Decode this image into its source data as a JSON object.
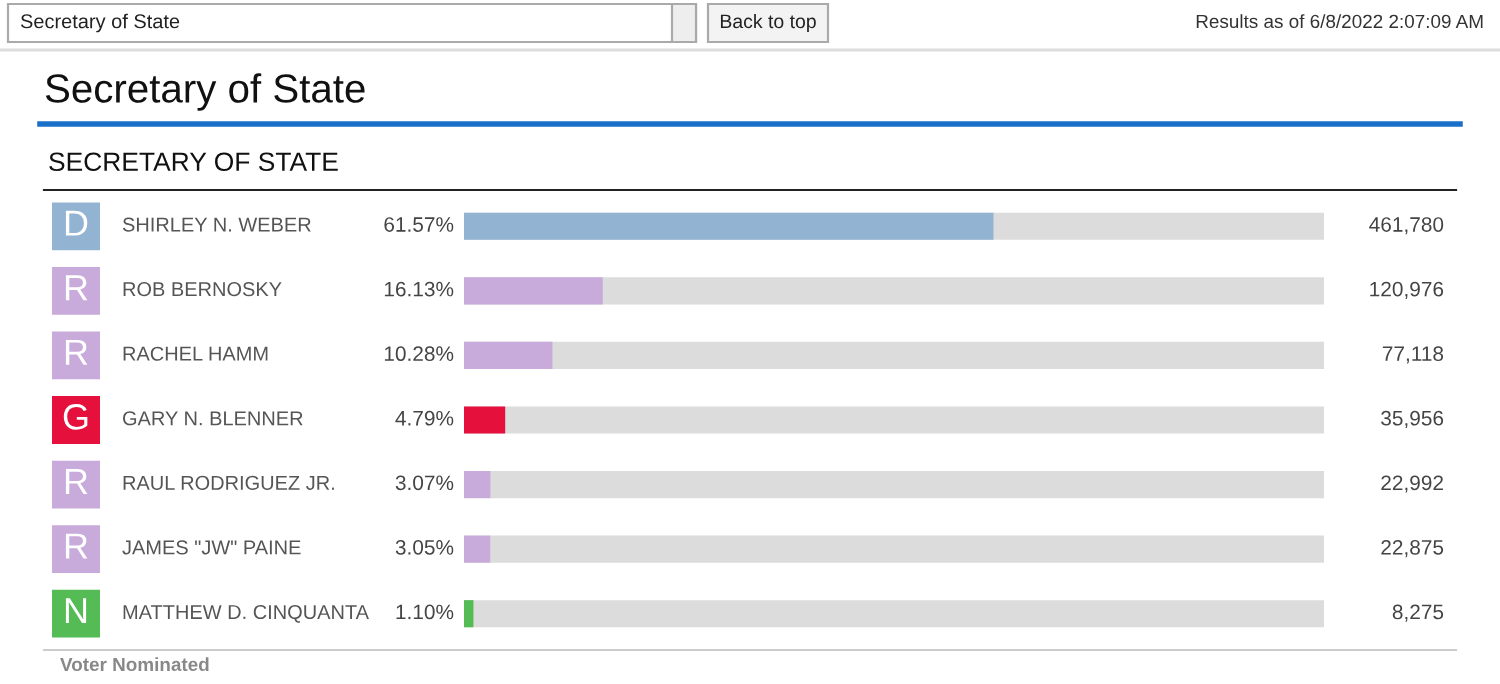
{
  "chart_data": {
    "type": "bar",
    "orientation": "horizontal",
    "title": "Secretary of State",
    "subtitle": "SECRETARY OF STATE",
    "categories": [
      "SHIRLEY N. WEBER",
      "ROB BERNOSKY",
      "RACHEL HAMM",
      "GARY N. BLENNER",
      "RAUL RODRIGUEZ JR.",
      "JAMES \"JW\" PAINE",
      "MATTHEW D. CINQUANTA"
    ],
    "values": [
      61.57,
      16.13,
      10.28,
      4.79,
      3.07,
      3.05,
      1.1
    ],
    "value_labels": [
      "61.57%",
      "16.13%",
      "10.28%",
      "4.79%",
      "3.07%",
      "3.05%",
      "1.10%"
    ],
    "colors": [
      "#93b3d2",
      "#c8aadb",
      "#c8aadb",
      "#e5103c",
      "#c8aadb",
      "#c8aadb",
      "#55bb55"
    ],
    "xlim": [
      0,
      100
    ],
    "annotations": [
      "Secretary of State",
      "Back to top",
      "Results as of 6/8/2022 2:07:09 AM",
      "Voter Nominated",
      "D",
      "R",
      "R",
      "G",
      "R",
      "R",
      "N",
      "461,780",
      "120,976",
      "77,118",
      "35,956",
      "22,992",
      "22,875",
      "8,275"
    ]
  }
}
